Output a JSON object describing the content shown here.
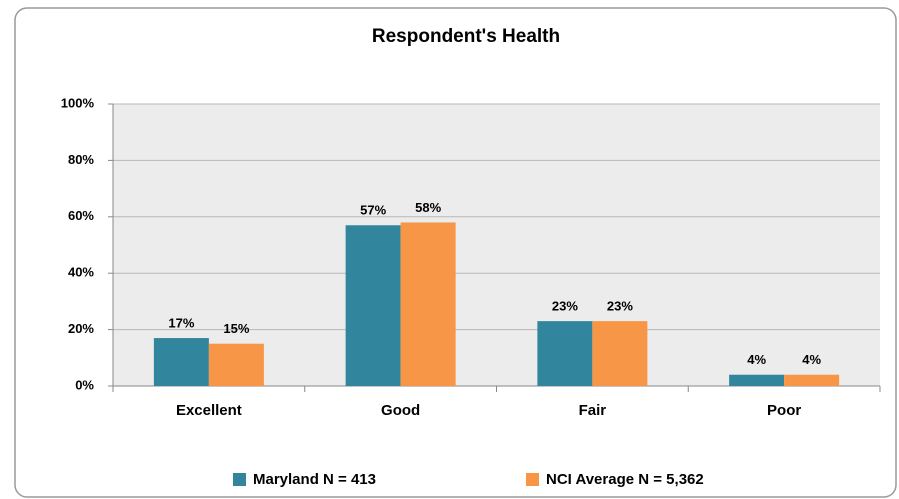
{
  "chart_data": {
    "type": "bar",
    "title": "Respondent's Health",
    "categories": [
      "Excellent",
      "Good",
      "Fair",
      "Poor"
    ],
    "series": [
      {
        "name": "Maryland N = 413",
        "color": "#31859c",
        "values": [
          17,
          57,
          23,
          4
        ],
        "value_labels": [
          "17%",
          "57%",
          "23%",
          "4%"
        ]
      },
      {
        "name": "NCI Average N = 5,362",
        "color": "#f79646",
        "values": [
          15,
          58,
          23,
          4
        ],
        "value_labels": [
          "15%",
          "58%",
          "23%",
          "4%"
        ]
      }
    ],
    "ylim": [
      0,
      100
    ],
    "yticks": [
      {
        "value": 0,
        "label": "0%"
      },
      {
        "value": 20,
        "label": "20%"
      },
      {
        "value": 40,
        "label": "40%"
      },
      {
        "value": 60,
        "label": "60%"
      },
      {
        "value": 80,
        "label": "80%"
      },
      {
        "value": 100,
        "label": "100%"
      }
    ],
    "grid": true,
    "legend": "bottom"
  }
}
